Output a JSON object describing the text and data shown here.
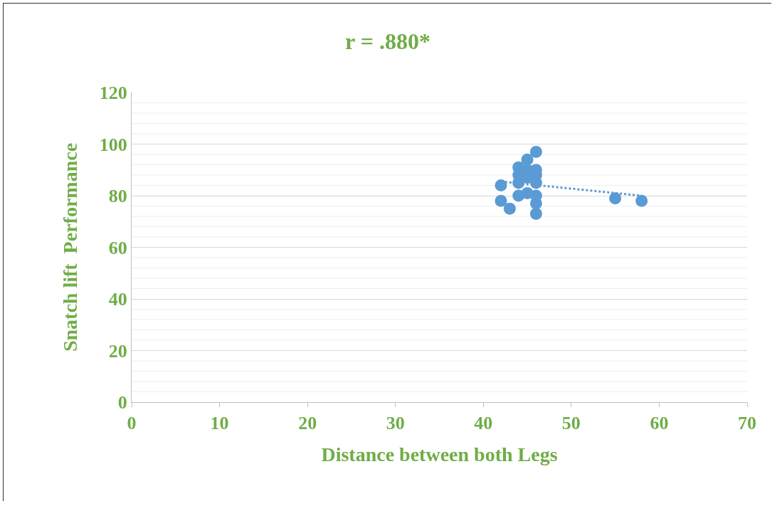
{
  "chart_data": {
    "type": "scatter",
    "title": "r = .880*",
    "xlabel": "Distance between both Legs",
    "ylabel": "Snatch lift  Performance",
    "series": [
      {
        "color": "#5b9bd5",
        "marker": "circle",
        "x": [
          42,
          42,
          43,
          44,
          44,
          44,
          44,
          45,
          45,
          45,
          45,
          46,
          46,
          46,
          46,
          46,
          46,
          46,
          55,
          58
        ],
        "values": [
          84,
          78,
          75,
          91,
          88,
          85,
          80,
          94,
          90,
          87,
          81,
          97,
          90,
          88,
          85,
          80,
          77,
          73,
          79,
          78
        ]
      },
      {
        "type": "line",
        "color": "#5b9bd5",
        "line_style": "dotted",
        "marker": "none",
        "x": [
          42,
          58
        ],
        "values": [
          85.5,
          80
        ]
      }
    ],
    "xlim": [
      0,
      70
    ],
    "xticks": [
      0,
      10,
      20,
      30,
      40,
      50,
      60,
      70
    ],
    "ylim": [
      0,
      120
    ],
    "yticks": [
      0,
      {
        "value": 4,
        "label": null
      },
      {
        "value": 8,
        "label": null
      },
      {
        "value": 12,
        "label": null
      },
      {
        "value": 16,
        "label": null
      },
      20,
      {
        "value": 24,
        "label": null
      },
      {
        "value": 28,
        "label": null
      },
      {
        "value": 32,
        "label": null
      },
      {
        "value": 36,
        "label": null
      },
      40,
      {
        "value": 44,
        "label": null
      },
      {
        "value": 48,
        "label": null
      },
      {
        "value": 52,
        "label": null
      },
      {
        "value": 56,
        "label": null
      },
      60,
      {
        "value": 64,
        "label": null
      },
      {
        "value": 68,
        "label": null
      },
      {
        "value": 72,
        "label": null
      },
      {
        "value": 76,
        "label": null
      },
      80,
      {
        "value": 84,
        "label": null
      },
      {
        "value": 88,
        "label": null
      },
      {
        "value": 92,
        "label": null
      },
      {
        "value": 96,
        "label": null
      },
      100,
      {
        "value": 104,
        "label": null
      },
      {
        "value": 108,
        "label": null
      },
      {
        "value": 112,
        "label": null
      },
      {
        "value": 116,
        "label": null
      },
      120
    ],
    "grid": "y"
  }
}
